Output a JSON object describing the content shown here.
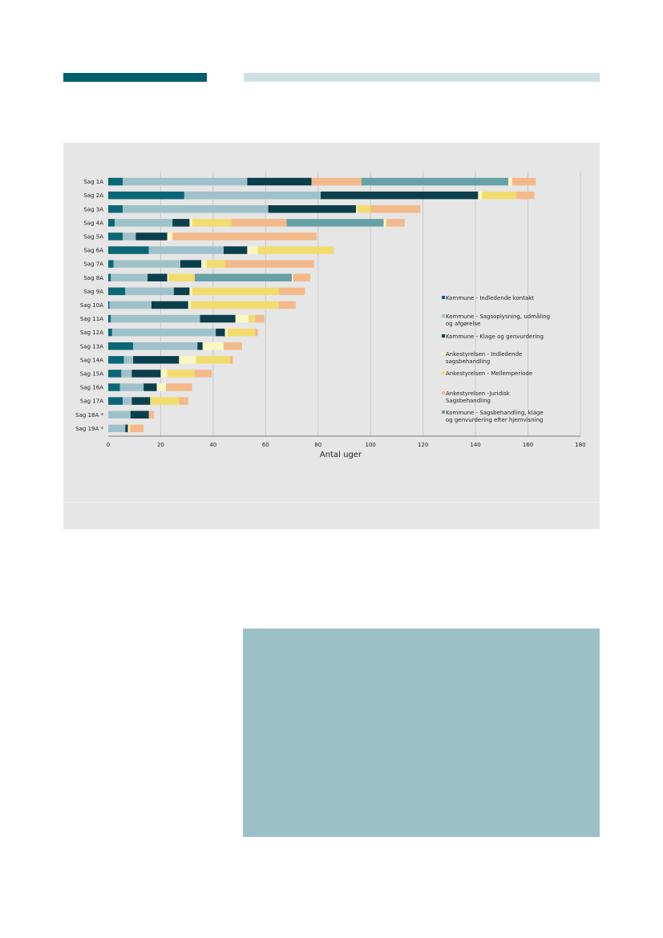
{
  "chart_data": {
    "type": "bar",
    "orientation": "horizontal",
    "stacked": true,
    "xlabel": "Antal uger",
    "xlim": [
      0,
      180
    ],
    "xticks": [
      0,
      20,
      40,
      60,
      80,
      100,
      120,
      140,
      160,
      180
    ],
    "grid": true,
    "legend_position": "right",
    "categories": [
      "Sag 1A",
      "Sag 2A",
      "Sag 3A",
      "Sag 4A",
      "Sag 5A",
      "Sag 6A",
      "Sag 7A",
      "Sag 8A",
      "Sag 9A",
      "Sag 10A",
      "Sag 11A",
      "Sag 12A",
      "Sag 13A",
      "Sag 14A",
      "Sag 15A",
      "Sag 16A",
      "Sag 17A",
      "Sag 18A *",
      "Sag 19A *"
    ],
    "series": [
      {
        "name": "Kommune - Indledende kontakt",
        "color": "#0b6777",
        "values": [
          5.5,
          29,
          5.5,
          2.5,
          5.5,
          15.5,
          2,
          1,
          6.5,
          0.5,
          1,
          1.5,
          9.5,
          6,
          5,
          4.5,
          5.5,
          0,
          0
        ]
      },
      {
        "name": "Kommune - Sagsoplysning, udmåling og afgørelse",
        "color": "#9fc2ca",
        "values": [
          47.5,
          52,
          55.5,
          22,
          5,
          28.5,
          25.5,
          14,
          18.5,
          16,
          34,
          39.5,
          24.5,
          3.5,
          4,
          9,
          3.5,
          8.5,
          6.5
        ]
      },
      {
        "name": "Kommune - Klage og genvurdering",
        "color": "#0b3f4b",
        "values": [
          24.5,
          60,
          33.5,
          6.5,
          12,
          9,
          8,
          7.5,
          6,
          14,
          13.5,
          3.5,
          2,
          17.5,
          11,
          5,
          7,
          7,
          1
        ]
      },
      {
        "name": "Ankestyrelsen - Indledende sagsbehandling",
        "color": "#fbf7c2",
        "values": [
          0,
          1.5,
          0.5,
          1,
          2,
          4,
          2,
          0.5,
          1,
          1,
          5,
          1,
          8,
          6.5,
          2.5,
          3.5,
          0,
          0,
          0.5
        ]
      },
      {
        "name": "Ankestyrelsen - Mellemperiode",
        "color": "#f2dc6e",
        "values": [
          0,
          13,
          5,
          15,
          0,
          29,
          7,
          10,
          33,
          33.5,
          2.5,
          10.5,
          0,
          13,
          10.5,
          0,
          11,
          0,
          0.5
        ]
      },
      {
        "name": "Ankestyrelsen -Juridisk Sagsbehandling",
        "color": "#f4b98a",
        "values": [
          19,
          7,
          19,
          21,
          55,
          0,
          34,
          0,
          10,
          6.5,
          3.5,
          1,
          7,
          1,
          6.5,
          10,
          3.5,
          2,
          5
        ]
      },
      {
        "name": "Kommune - Sagsbehandling, klage og genvurdering efter hjemvisning",
        "color": "#66a1a7",
        "values": [
          56,
          0,
          0,
          37,
          0,
          0,
          0,
          37,
          0,
          0,
          0,
          0,
          0,
          0,
          0,
          0,
          0,
          0,
          0
        ]
      }
    ],
    "trailing_segments": [
      {
        "row": 0,
        "after": 5,
        "values": [
          1.5,
          9
        ]
      },
      {
        "row": 3,
        "after": 5,
        "values": [
          1,
          7
        ]
      },
      {
        "row": 7,
        "after": 5,
        "values": [
          0.5,
          6.5
        ]
      }
    ]
  }
}
